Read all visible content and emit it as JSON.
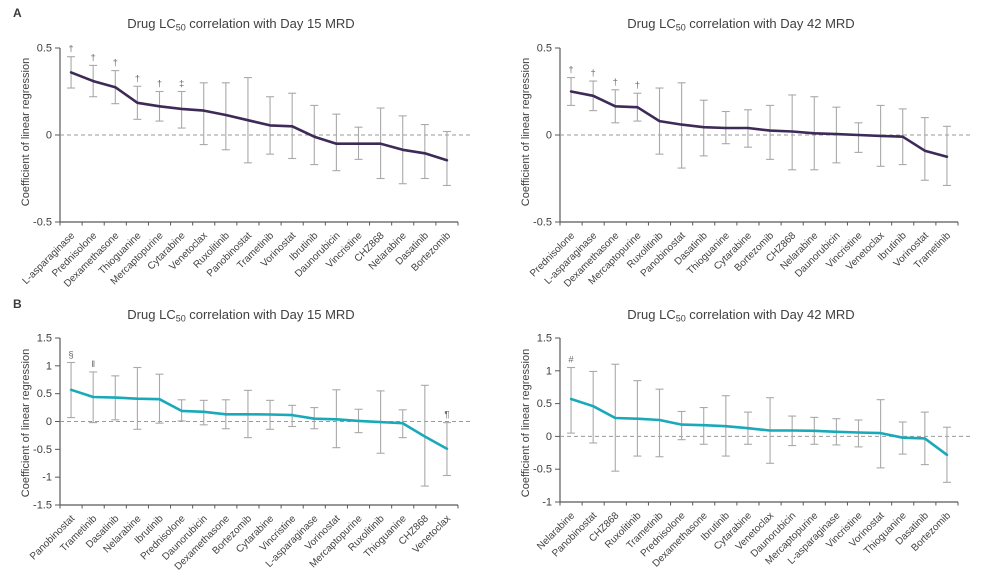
{
  "figure": {
    "panel_a_label": "A",
    "panel_b_label": "B"
  },
  "colors": {
    "panel_a_line": "#3d2a57",
    "panel_b_line": "#1aa9b8",
    "error_bar": "#a9a9a9",
    "zero_line": "#9a9a9a",
    "axis": "#595959",
    "text": "#404040",
    "marker": "#6b6b6b",
    "background": "#ffffff"
  },
  "chart_data": [
    {
      "type": "line",
      "panel": "A",
      "title": "Drug LC50 correlation with Day 15 MRD",
      "title_prefix": "Drug LC",
      "title_sub": "50",
      "title_rest": "correlation with Day 15 MRD",
      "ylabel": "Coefficient of linear regression",
      "ylim": [
        -0.5,
        0.5
      ],
      "yticks": [
        {
          "v": 0.5,
          "label": "0.5"
        },
        {
          "v": 0,
          "label": "0"
        },
        {
          "v": -0.5,
          "label": "-0.5"
        }
      ],
      "zero_line": true,
      "legend": "none",
      "line_color": "#3d2a57",
      "categories": [
        "L-asparaginase",
        "Prednisolone",
        "Dexamethasone",
        "Thioguanine",
        "Mercaptopurine",
        "Cytarabine",
        "Venetoclax",
        "Ruxolitinib",
        "Panobinostat",
        "Trametinib",
        "Vorinostat",
        "Ibrutinib",
        "Daunorubicin",
        "Vincristine",
        "CHZ868",
        "Nelarabine",
        "Dasatinib",
        "Bortezomib"
      ],
      "values": [
        0.36,
        0.31,
        0.275,
        0.185,
        0.165,
        0.15,
        0.14,
        0.115,
        0.085,
        0.055,
        0.05,
        -0.01,
        -0.05,
        -0.05,
        -0.05,
        -0.085,
        -0.105,
        -0.145
      ],
      "err_low": [
        0.27,
        0.22,
        0.18,
        0.09,
        0.08,
        0.04,
        -0.055,
        -0.085,
        -0.16,
        -0.11,
        -0.135,
        -0.17,
        -0.205,
        -0.14,
        -0.25,
        -0.28,
        -0.25,
        -0.29
      ],
      "err_high": [
        0.45,
        0.4,
        0.37,
        0.28,
        0.25,
        0.25,
        0.3,
        0.3,
        0.33,
        0.22,
        0.24,
        0.17,
        0.12,
        0.045,
        0.155,
        0.11,
        0.06,
        0.02
      ],
      "annotations": [
        {
          "index": 0,
          "symbol": "†"
        },
        {
          "index": 1,
          "symbol": "†"
        },
        {
          "index": 2,
          "symbol": "†"
        },
        {
          "index": 3,
          "symbol": "†"
        },
        {
          "index": 4,
          "symbol": "†"
        },
        {
          "index": 5,
          "symbol": "‡"
        }
      ]
    },
    {
      "type": "line",
      "panel": "A",
      "title": "Drug LC50 correlation with Day 42 MRD",
      "title_prefix": "Drug LC",
      "title_sub": "50",
      "title_rest": "correlation with Day 42 MRD",
      "ylabel": "Coefficient of linear regression",
      "ylim": [
        -0.5,
        0.5
      ],
      "yticks": [
        {
          "v": 0.5,
          "label": "0.5"
        },
        {
          "v": 0,
          "label": "0"
        },
        {
          "v": -0.5,
          "label": "-0.5"
        }
      ],
      "zero_line": true,
      "legend": "none",
      "line_color": "#3d2a57",
      "categories": [
        "Prednisolone",
        "L-asparaginase",
        "Dexamethasone",
        "Mercaptopurine",
        "Ruxolitinib",
        "Panobinostat",
        "Dasatinib",
        "Thioguanine",
        "Cytarabine",
        "Bortezomib",
        "CHZ868",
        "Nelarabine",
        "Daunorubicin",
        "Vincristine",
        "Venetoclax",
        "Ibrutinib",
        "Vorinostat",
        "Trametinib"
      ],
      "values": [
        0.25,
        0.225,
        0.165,
        0.16,
        0.08,
        0.06,
        0.045,
        0.04,
        0.04,
        0.025,
        0.02,
        0.01,
        0.005,
        0.0,
        -0.005,
        -0.01,
        -0.09,
        -0.125
      ],
      "err_low": [
        0.17,
        0.14,
        0.07,
        0.08,
        -0.11,
        -0.19,
        -0.12,
        -0.05,
        -0.07,
        -0.14,
        -0.2,
        -0.2,
        -0.16,
        -0.1,
        -0.18,
        -0.17,
        -0.26,
        -0.29
      ],
      "err_high": [
        0.33,
        0.31,
        0.26,
        0.24,
        0.27,
        0.3,
        0.2,
        0.135,
        0.145,
        0.17,
        0.23,
        0.22,
        0.16,
        0.07,
        0.17,
        0.15,
        0.1,
        0.05
      ],
      "annotations": [
        {
          "index": 0,
          "symbol": "†"
        },
        {
          "index": 1,
          "symbol": "†"
        },
        {
          "index": 2,
          "symbol": "†"
        },
        {
          "index": 3,
          "symbol": "†"
        }
      ]
    },
    {
      "type": "line",
      "panel": "B",
      "title": "Drug LC50 correlation with Day 15 MRD",
      "title_prefix": "Drug LC",
      "title_sub": "50",
      "title_rest": "correlation with Day 15 MRD",
      "ylabel": "Coefficient of linear regression",
      "ylim": [
        -1.5,
        1.5
      ],
      "yticks": [
        {
          "v": 1.5,
          "label": "1.5"
        },
        {
          "v": 1,
          "label": "1"
        },
        {
          "v": 0.5,
          "label": "0.5"
        },
        {
          "v": 0,
          "label": "0"
        },
        {
          "v": -0.5,
          "label": "-0.5"
        },
        {
          "v": -1,
          "label": "-1"
        },
        {
          "v": -1.5,
          "label": "-1.5"
        }
      ],
      "zero_line": true,
      "legend": "none",
      "line_color": "#1aa9b8",
      "categories": [
        "Panobinostat",
        "Trametinib",
        "Dasatinib",
        "Nelarabine",
        "Ibrutinib",
        "Prednisolone",
        "Daunorubicin",
        "Dexamethasone",
        "Bortezomib",
        "Cytarabine",
        "Vincristine",
        "L-asparaginase",
        "Vorinostat",
        "Mercaptopurine",
        "Ruxolitinib",
        "Thioguanine",
        "CHZ868",
        "Venetoclax"
      ],
      "values": [
        0.57,
        0.44,
        0.43,
        0.41,
        0.4,
        0.19,
        0.175,
        0.13,
        0.13,
        0.125,
        0.115,
        0.05,
        0.04,
        0.01,
        -0.01,
        -0.03,
        -0.27,
        -0.49
      ],
      "err_low": [
        0.07,
        -0.02,
        0.03,
        -0.14,
        -0.03,
        0.01,
        -0.06,
        -0.13,
        -0.29,
        -0.14,
        -0.09,
        -0.13,
        -0.47,
        -0.2,
        -0.57,
        -0.29,
        -1.16,
        -0.97
      ],
      "err_high": [
        1.06,
        0.89,
        0.82,
        0.97,
        0.85,
        0.39,
        0.38,
        0.39,
        0.56,
        0.38,
        0.29,
        0.25,
        0.57,
        0.22,
        0.55,
        0.21,
        0.65,
        -0.02
      ],
      "annotations": [
        {
          "index": 0,
          "symbol": "§"
        },
        {
          "index": 1,
          "symbol": "‖"
        },
        {
          "index": 17,
          "symbol": "¶"
        }
      ]
    },
    {
      "type": "line",
      "panel": "B",
      "title": "Drug LC50 correlation with Day 42 MRD",
      "title_prefix": "Drug LC",
      "title_sub": "50",
      "title_rest": "correlation with Day 42 MRD",
      "ylabel": "Coefficient of linear regression",
      "ylim": [
        -1,
        1.5
      ],
      "yticks": [
        {
          "v": 1.5,
          "label": "1.5"
        },
        {
          "v": 1,
          "label": "1"
        },
        {
          "v": 0.5,
          "label": "0.5"
        },
        {
          "v": 0,
          "label": "0"
        },
        {
          "v": -0.5,
          "label": "-0.5"
        },
        {
          "v": -1,
          "label": "-1"
        }
      ],
      "zero_line": true,
      "legend": "none",
      "line_color": "#1aa9b8",
      "categories": [
        "Nelarabine",
        "Panobinostat",
        "CHZ868",
        "Ruxolitinib",
        "Trametinib",
        "Prednisolone",
        "Dexamethasone",
        "Ibrutinib",
        "Cytarabine",
        "Venetoclax",
        "Daunorubicin",
        "Mercaptopurine",
        "L-asparaginase",
        "Vincristine",
        "Vorinostat",
        "Thioguanine",
        "Dasatinib",
        "Bortezomib"
      ],
      "values": [
        0.57,
        0.46,
        0.28,
        0.27,
        0.25,
        0.18,
        0.17,
        0.155,
        0.125,
        0.09,
        0.09,
        0.085,
        0.07,
        0.06,
        0.05,
        -0.02,
        -0.03,
        -0.28
      ],
      "err_low": [
        0.05,
        -0.1,
        -0.53,
        -0.3,
        -0.31,
        -0.05,
        -0.12,
        -0.3,
        -0.12,
        -0.41,
        -0.14,
        -0.12,
        -0.13,
        -0.16,
        -0.48,
        -0.27,
        -0.43,
        -0.7
      ],
      "err_high": [
        1.05,
        0.99,
        1.1,
        0.85,
        0.72,
        0.38,
        0.44,
        0.62,
        0.37,
        0.59,
        0.31,
        0.29,
        0.27,
        0.25,
        0.56,
        0.22,
        0.37,
        0.14
      ],
      "annotations": [
        {
          "index": 0,
          "symbol": "#"
        }
      ]
    }
  ]
}
